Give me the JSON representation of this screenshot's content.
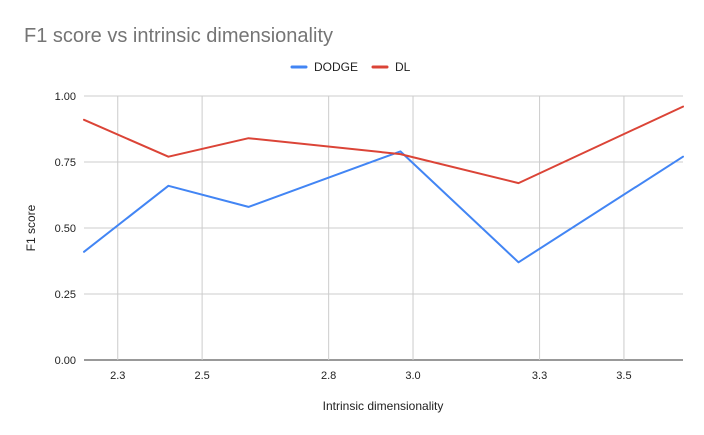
{
  "chart_data": {
    "type": "line",
    "title": "F1 score vs intrinsic dimensionality",
    "xlabel": "Intrinsic dimensionality",
    "ylabel": "F1 score",
    "xlim": [
      2.22,
      3.64
    ],
    "ylim": [
      0,
      1
    ],
    "x_ticks": [
      2.3,
      2.5,
      2.8,
      3.0,
      3.3,
      3.5
    ],
    "x_tick_labels": [
      "2.3",
      "2.5",
      "2.8",
      "3.0",
      "3.3",
      "3.5"
    ],
    "y_ticks": [
      0,
      0.25,
      0.5,
      0.75,
      1.0
    ],
    "y_tick_labels": [
      "0.00",
      "0.25",
      "0.50",
      "0.75",
      "1.00"
    ],
    "grid": true,
    "legend_position": "top-center",
    "x": [
      2.22,
      2.42,
      2.61,
      2.97,
      3.25,
      3.64
    ],
    "series": [
      {
        "name": "DODGE",
        "color": "#4285f4",
        "values": [
          0.41,
          0.66,
          0.58,
          0.79,
          0.37,
          0.77
        ]
      },
      {
        "name": "DL",
        "color": "#db4437",
        "values": [
          0.91,
          0.77,
          0.84,
          0.78,
          0.67,
          0.96
        ]
      }
    ]
  }
}
